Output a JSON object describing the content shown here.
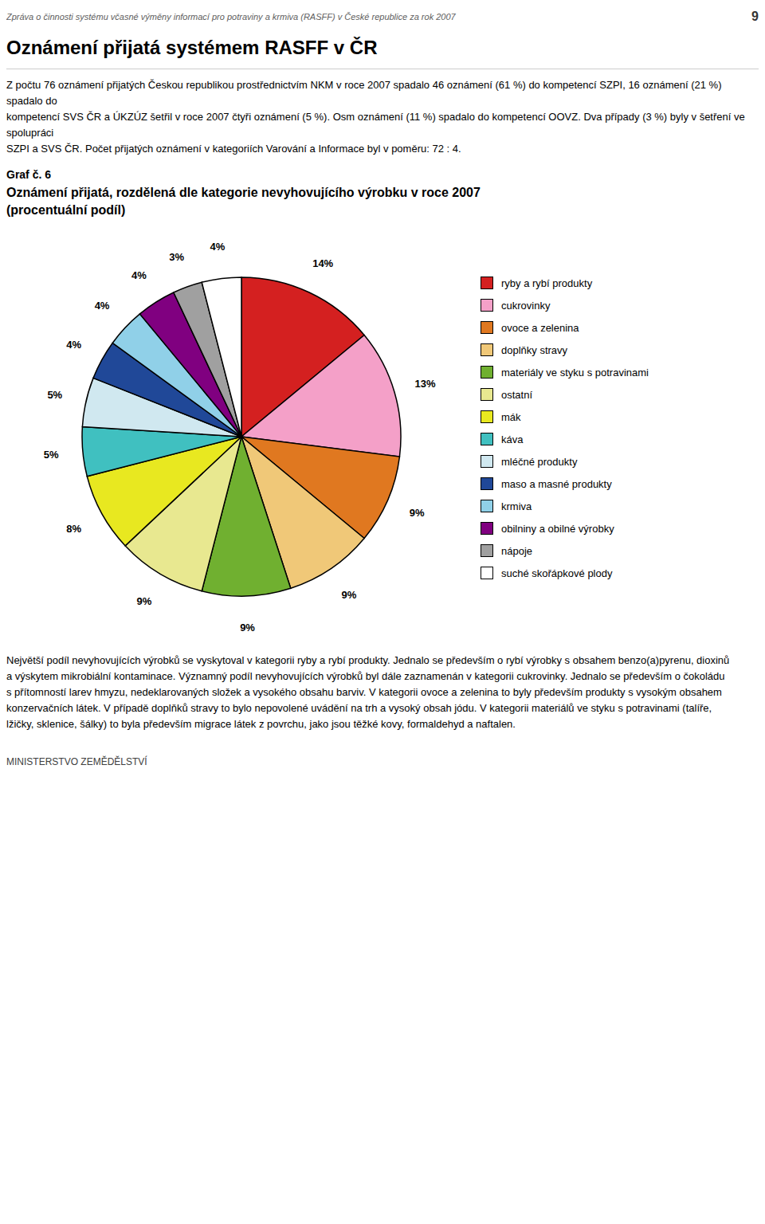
{
  "chart_data": {
    "type": "pie",
    "title": "Oznámení přijatá, rozdělená dle kategorie nevyhovujícího výrobku v roce 2007",
    "subtitle": "(procentuální podíl)",
    "annotations": [
      "Zpráva o činnosti systému včasné výměny informací pro potraviny a krmiva (RASFF) v České republice za rok 2007",
      "9",
      "Oznámení přijatá systémem RASFF v ČR",
      "Z počtu 76 oznámení přijatých Českou republikou prostřednictvím NKM v roce 2007 spadalo 46 oznámení (61 %) do kompetencí SZPI, 16 oznámení (21 %) spadalo do",
      "kompetencí SVS ČR a ÚKZÚZ šetřil v roce 2007 čtyři oznámení (5 %). Osm oznámení (11 %) spadalo do kompetencí OOVZ. Dva případy (3 %) byly v šetření ve spolupráci",
      "SZPI a SVS ČR. Počet přijatých oznámení v kategoriích Varování a Informace byl v poměru: 72 : 4.",
      "Graf č. 6",
      "Největší podíl nevyhovujících výrobků se vyskytoval v kategorii ryby a rybí produkty. Jednalo se především o rybí výrobky s obsahem benzo(a)pyrenu, dioxinů",
      "a výskytem mikrobiální kontaminace. Významný podíl nevyhovujících výrobků byl dále zaznamenán v kategorii cukrovinky. Jednalo se především o čokoládu",
      "s přítomností larev hmyzu, nedeklarovaných složek a vysokého obsahu barviv. V kategorii ovoce a zelenina to byly především produkty s vysokým obsahem",
      "konzervačních látek. V případě doplňků stravy to bylo nepovolené uvádění na trh a vysoký obsah jódu. V kategorii materiálů ve styku s potravinami (talíře,",
      "lžičky, sklenice, šálky) to byla především migrace látek z povrchu, jako jsou těžké kovy, formaldehyd a naftalen.",
      "MINISTERSTVO ZEMĚDĚLSTVÍ"
    ],
    "categories": [
      "ryby a rybí produkty",
      "cukrovinky",
      "ovoce a zelenina",
      "doplňky stravy",
      "materiály ve styku s potravinami",
      "ostatní",
      "mák",
      "káva",
      "mléčné produkty",
      "maso a masné produkty",
      "krmiva",
      "obilniny a obilné výrobky",
      "nápoje",
      "suché skořápkové plody"
    ],
    "values": [
      14,
      13,
      9,
      9,
      9,
      9,
      8,
      5,
      5,
      4,
      4,
      4,
      3,
      4
    ],
    "value_labels": [
      "14%",
      "13%",
      "9%",
      "9%",
      "9%",
      "9%",
      "8%",
      "5%",
      "5%",
      "4%",
      "4%",
      "4%",
      "3%",
      "4%"
    ],
    "colors": [
      "#d42020",
      "#f4a0c8",
      "#e07820",
      "#f0c878",
      "#70b030",
      "#e8e890",
      "#e8e820",
      "#40c0c0",
      "#d0e8f0",
      "#204898",
      "#90d0e8",
      "#800080",
      "#a0a0a0",
      "#ffffff"
    ],
    "data_labels": true,
    "legend": "right"
  }
}
